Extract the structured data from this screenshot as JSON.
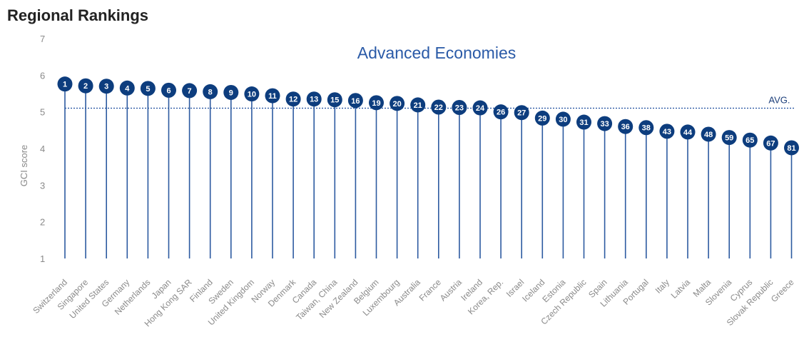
{
  "page": {
    "heading": "Regional Rankings"
  },
  "chart_data": {
    "type": "lollipop",
    "title": "Advanced Economies",
    "xlabel": "",
    "ylabel": "GCI score",
    "ylim": [
      1,
      7
    ],
    "yticks": [
      1,
      2,
      3,
      4,
      5,
      6,
      7
    ],
    "average": 5.1,
    "average_label": "AVG.",
    "categories": [
      "Switzerland",
      "Singapore",
      "United States",
      "Germany",
      "Netherlands",
      "Japan",
      "Hong Kong SAR",
      "Finland",
      "Sweden",
      "United Kingdom",
      "Norway",
      "Denmark",
      "Canada",
      "Taiwan, China",
      "New Zealand",
      "Belgium",
      "Luxembourg",
      "Australia",
      "France",
      "Austria",
      "Ireland",
      "Korea, Rep.",
      "Israel",
      "Iceland",
      "Estonia",
      "Czech Republic",
      "Spain",
      "Lithuania",
      "Portugal",
      "Italy",
      "Latvia",
      "Malta",
      "Slovenia",
      "Cyprus",
      "Slovak Republic",
      "Greece"
    ],
    "ranks": [
      "1",
      "2",
      "3",
      "4",
      "5",
      "6",
      "7",
      "8",
      "9",
      "10",
      "11",
      "12",
      "13",
      "15",
      "16",
      "19",
      "20",
      "21",
      "22",
      "23",
      "24",
      "26",
      "27",
      "29",
      "30",
      "31",
      "33",
      "36",
      "38",
      "43",
      "44",
      "48",
      "59",
      "65",
      "67",
      "81"
    ],
    "values": [
      5.76,
      5.71,
      5.7,
      5.65,
      5.64,
      5.59,
      5.58,
      5.55,
      5.53,
      5.49,
      5.44,
      5.35,
      5.35,
      5.33,
      5.31,
      5.25,
      5.23,
      5.19,
      5.13,
      5.12,
      5.11,
      5.0,
      4.98,
      4.83,
      4.8,
      4.72,
      4.68,
      4.6,
      4.57,
      4.47,
      4.45,
      4.39,
      4.3,
      4.23,
      4.15,
      4.02
    ],
    "colors": {
      "stem": "#2c5aa0",
      "marker": "#0d3d7e",
      "marker_text": "#ffffff",
      "average_line": "#1d4e9e",
      "title": "#2a5aa7"
    }
  }
}
